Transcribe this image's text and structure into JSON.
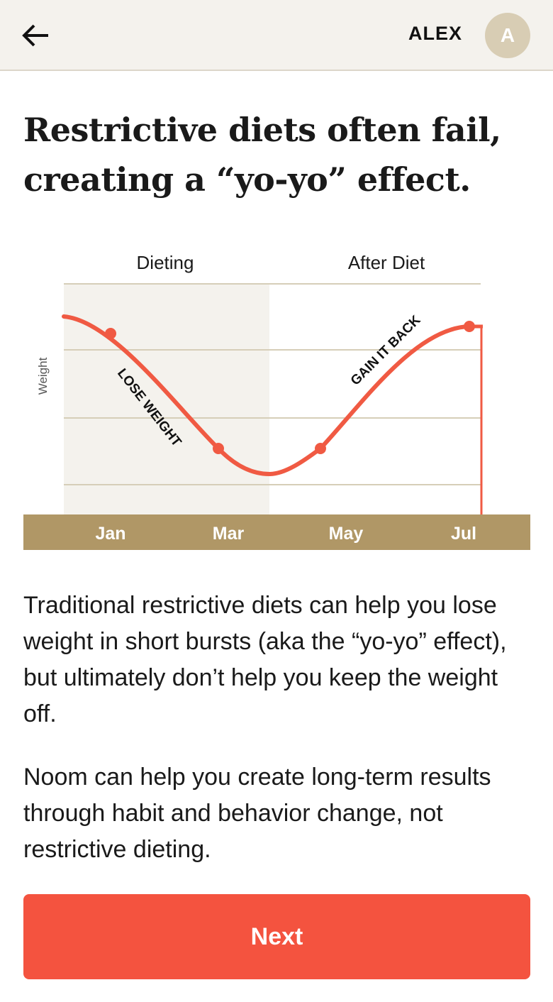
{
  "header": {
    "user_name": "ALEX",
    "avatar_initial": "A"
  },
  "headline": "Restrictive diets often fail, creating a “yo-yo” effect.",
  "chart_data": {
    "type": "line",
    "phases": [
      "Dieting",
      "After Diet"
    ],
    "ylabel": "Weight",
    "x_ticks": [
      "Jan",
      "Mar",
      "May",
      "Jul"
    ],
    "annotations": [
      "LOSE WEIGHT",
      "GAIN IT BACK"
    ],
    "colors": {
      "line": "#f05a43",
      "dieting_band": "#f4f2ed",
      "axis_band": "#b09766",
      "grid": "#d6ceb8"
    }
  },
  "body": {
    "paragraph_1": "Traditional restrictive diets can help you lose weight in short bursts (aka the “yo-yo” effect), but ultimately don’t help you keep the weight off.",
    "paragraph_2": "Noom can help you create long-term results through habit and behavior change, not restrictive dieting."
  },
  "next_button": "Next"
}
